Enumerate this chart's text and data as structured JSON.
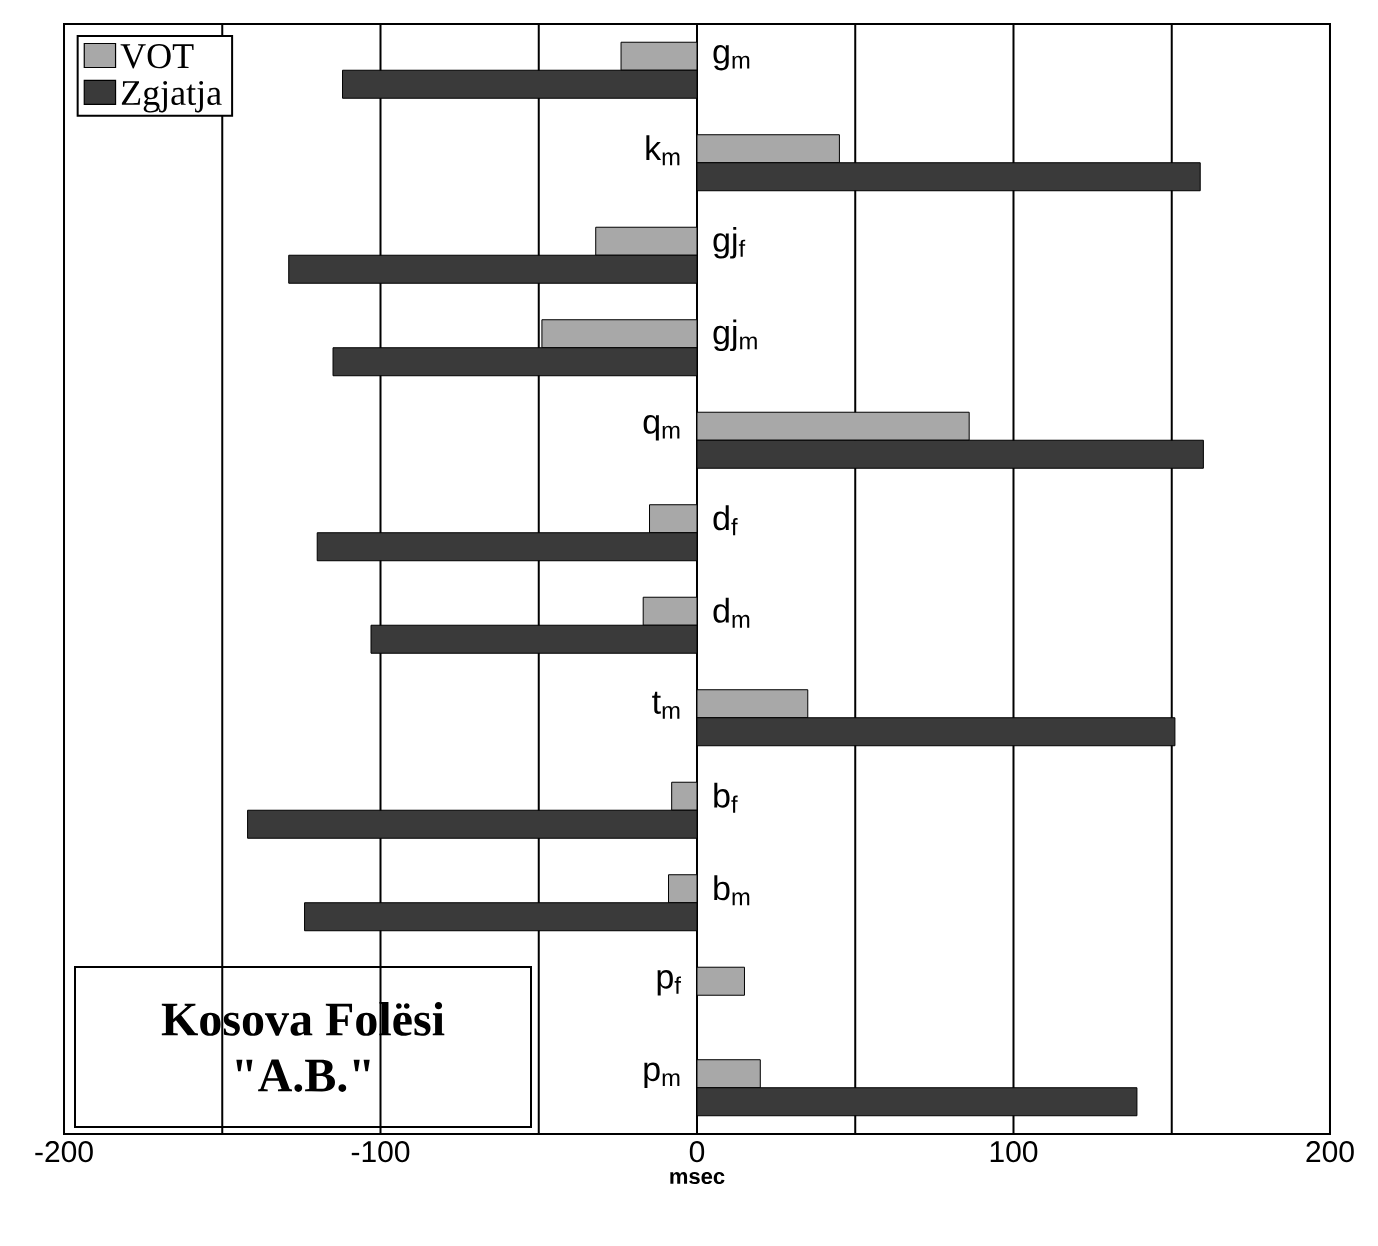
{
  "chart_data": {
    "type": "bar",
    "orientation": "horizontal",
    "xlabel": "msec",
    "categories": [
      "g$_{m}$",
      "k$_{m}$",
      "gj$_{f}$",
      "gj$_{m}$",
      "q$_{m}$",
      "d$_{f}$",
      "d$_{m}$",
      "t$_{m}$",
      "b$_{f}$",
      "b$_{m}$",
      "p$_{f}$",
      "p$_{m}$"
    ],
    "series": [
      {
        "name": "VOT",
        "color": "#a8a8a8",
        "values": [
          -24,
          45,
          -32,
          -49,
          86,
          -15,
          -17,
          35,
          -8,
          -9,
          15,
          20
        ]
      },
      {
        "name": "Zgjatja",
        "color": "#3a3a3a",
        "values": [
          -112,
          159,
          -129,
          -115,
          160,
          -120,
          -103,
          151,
          -142,
          -124,
          null,
          139
        ]
      }
    ],
    "xlim": [
      -200,
      200
    ],
    "xticks": [
      -200,
      {
        "value": -150,
        "label": null
      },
      -100,
      {
        "value": -50,
        "label": null
      },
      0,
      {
        "value": 50,
        "label": null
      },
      100,
      {
        "value": 150,
        "label": null
      },
      200
    ],
    "grid": "x",
    "legend": "top left",
    "annotations": [
      "Kosova Folësi",
      "\"A.B.\""
    ]
  }
}
